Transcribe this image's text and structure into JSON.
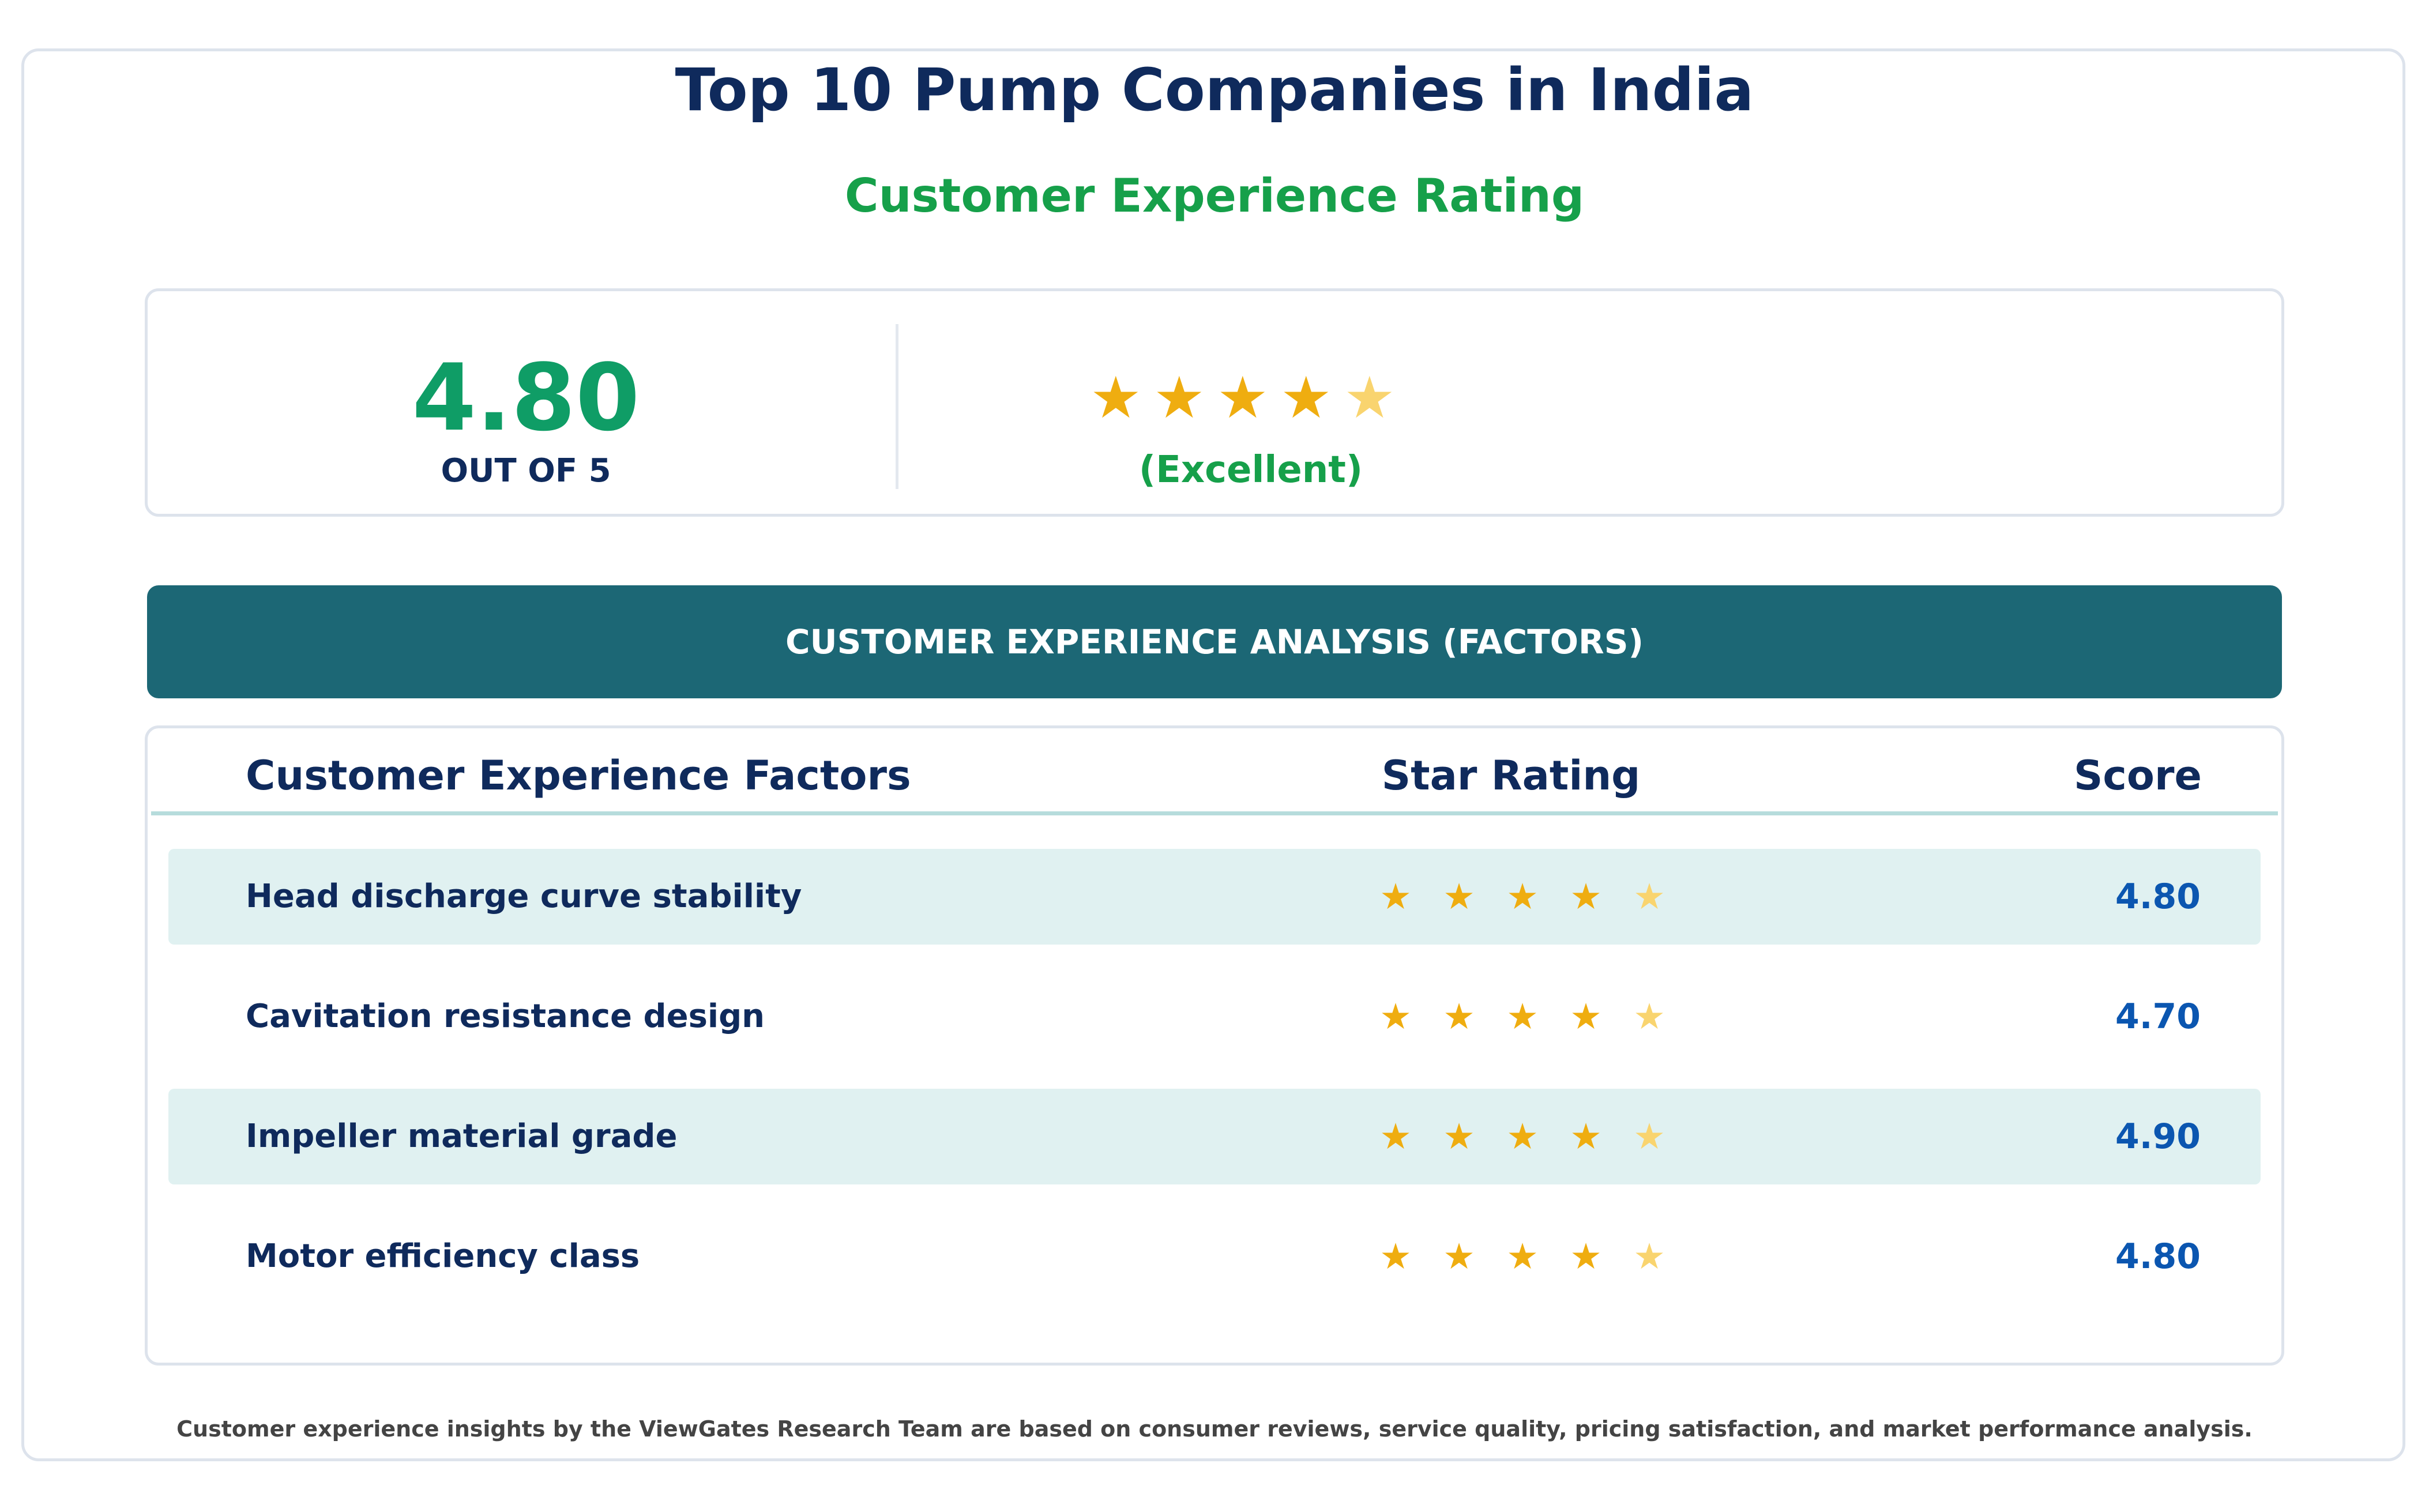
{
  "page": {
    "title": "Top 10 Pump Companies in India",
    "subtitle": "Customer Experience Rating"
  },
  "summary": {
    "score": "4.80",
    "out_of": "OUT OF 5",
    "rating_label": "(Excellent)",
    "stars": 4.8,
    "max_stars": 5
  },
  "section": {
    "banner": "CUSTOMER EXPERIENCE ANALYSIS (FACTORS)"
  },
  "table": {
    "headers": {
      "factor": "Customer Experience Factors",
      "stars": "Star Rating",
      "score": "Score"
    },
    "rows": [
      {
        "factor": "Head discharge curve stability",
        "score": "4.80",
        "stars": 4.8
      },
      {
        "factor": "Cavitation resistance design",
        "score": "4.70",
        "stars": 4.7
      },
      {
        "factor": "Impeller material grade",
        "score": "4.90",
        "stars": 4.9
      },
      {
        "factor": "Motor efficiency class",
        "score": "4.80",
        "stars": 4.8
      }
    ]
  },
  "footer": {
    "note": "Customer experience insights by the ViewGates Research Team are based on consumer reviews, service quality, pricing satisfaction, and market performance analysis."
  },
  "colors": {
    "title": "#0f2a5c",
    "subtitle_green": "#16a04a",
    "score_green": "#0f9d66",
    "banner_teal": "#1c6775",
    "row_shade": "#e0f1f1",
    "star_full": "#efad10",
    "star_partial": "#f9d46f",
    "score_blue": "#0b56b0"
  },
  "icons": {
    "star": "star-icon"
  }
}
